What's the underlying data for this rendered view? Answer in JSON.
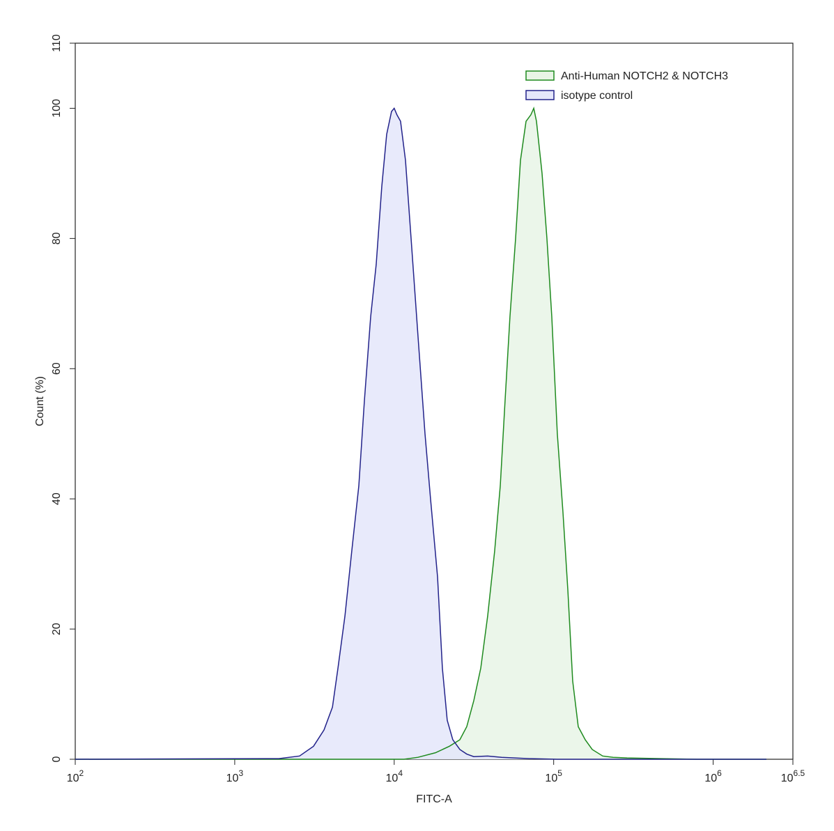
{
  "chart_data": {
    "type": "histogram-overlay",
    "x_label": "FITC-A",
    "y_label": "Count  (%)",
    "x_scale": "log",
    "xlim": [
      100,
      3162277.66
    ],
    "xticks": [
      {
        "value": 100,
        "label": "10",
        "exponent": "2"
      },
      {
        "value": 1000,
        "label": "10",
        "exponent": "3"
      },
      {
        "value": 10000,
        "label": "10",
        "exponent": "4"
      },
      {
        "value": 100000,
        "label": "10",
        "exponent": "5"
      },
      {
        "value": 1000000,
        "label": "10",
        "exponent": "6"
      },
      {
        "value": 3162277.66,
        "label": "10",
        "exponent": "6.5"
      }
    ],
    "ylim": [
      0,
      110
    ],
    "yticks": [
      0,
      20,
      40,
      60,
      80,
      100,
      110
    ],
    "legend": "top-right",
    "series": [
      {
        "name": "Anti-Human NOTCH2 & NOTCH3",
        "color": "#1e8a1e",
        "fill_color": "#e8f5e6",
        "x": [
          100,
          11530,
          14100,
          18150,
          22200,
          25800,
          28500,
          31550,
          34900,
          38550,
          42650,
          46250,
          49550,
          53200,
          57700,
          61900,
          67100,
          71950,
          75000,
          78000,
          84550,
          90700,
          97300,
          105400,
          114300,
          122700,
          131600,
          142600,
          157700,
          174500,
          202900,
          235900,
          288600,
          476800,
          788300,
          2158000
        ],
        "values": [
          0,
          0,
          0.3,
          1,
          2,
          3,
          5,
          9,
          14,
          22,
          32,
          42,
          55,
          68,
          80,
          92,
          98,
          99,
          100,
          98,
          90,
          80,
          68,
          50,
          38,
          26,
          12,
          5,
          3,
          1.5,
          0.5,
          0.3,
          0.2,
          0.1,
          0,
          0
        ]
      },
      {
        "name": "isotype control",
        "color": "#22228a",
        "fill_color": "#e4e6fa",
        "x": [
          100,
          1890,
          2550,
          3120,
          3630,
          4100,
          4440,
          4910,
          5420,
          6000,
          6500,
          7120,
          7710,
          8360,
          8970,
          9620,
          10000,
          10400,
          10960,
          11770,
          12760,
          14100,
          15600,
          16900,
          18700,
          20050,
          21500,
          23300,
          25800,
          28500,
          31550,
          38550,
          47200,
          70500,
          105400,
          2158000
        ],
        "values": [
          0,
          0.1,
          0.5,
          2,
          4.5,
          8,
          14,
          22,
          32,
          42,
          55,
          68,
          76,
          88,
          96,
          99.5,
          100,
          99,
          98,
          92,
          80,
          65,
          50,
          40,
          28,
          14,
          6,
          3,
          1.5,
          0.8,
          0.4,
          0.5,
          0.3,
          0.1,
          0,
          0
        ]
      }
    ]
  }
}
